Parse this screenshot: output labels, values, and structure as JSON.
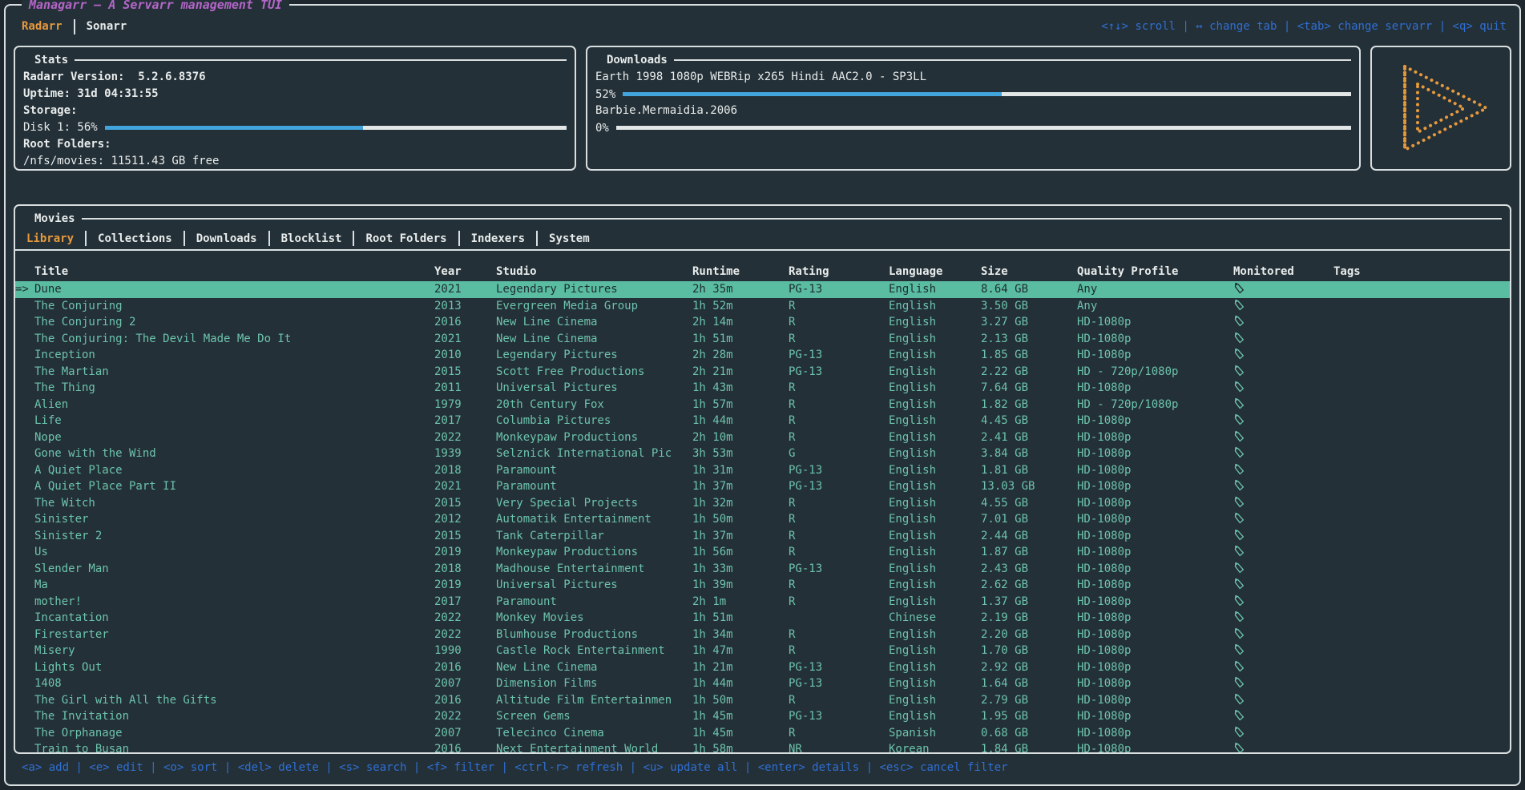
{
  "app": {
    "title": "Managarr — A Servarr management TUI"
  },
  "top_keybinds": "<↑↓> scroll | ↔ change tab | <tab> change servarr | <q> quit",
  "servarr_tabs": [
    {
      "label": "Radarr",
      "active": true
    },
    {
      "label": "Sonarr",
      "active": false
    }
  ],
  "stats": {
    "title": "Stats",
    "version_line": "Radarr Version:  5.2.6.8376",
    "uptime_line": "Uptime: 31d 04:31:55",
    "storage_label": "Storage:",
    "disk_label": "Disk 1: 56%",
    "disk_percent": 56,
    "root_folders_label": "Root Folders:",
    "root_folder_line": "/nfs/movies: 11511.43 GB free"
  },
  "downloads": {
    "title": "Downloads",
    "items": [
      {
        "name": "Earth 1998 1080p WEBRip x265 Hindi AAC2.0 - SP3LL",
        "percent_label": "52%",
        "percent": 52
      },
      {
        "name": "Barbie.Mermaidia.2006",
        "percent_label": "0%",
        "percent": 0
      }
    ]
  },
  "logo": {
    "name": "managarr-play-logo"
  },
  "movies": {
    "title": "Movies",
    "tabs": [
      {
        "label": "Library",
        "active": true
      },
      {
        "label": "Collections",
        "active": false
      },
      {
        "label": "Downloads",
        "active": false
      },
      {
        "label": "Blocklist",
        "active": false
      },
      {
        "label": "Root Folders",
        "active": false
      },
      {
        "label": "Indexers",
        "active": false
      },
      {
        "label": "System",
        "active": false
      }
    ],
    "columns": [
      "Title",
      "Year",
      "Studio",
      "Runtime",
      "Rating",
      "Language",
      "Size",
      "Quality Profile",
      "Monitored",
      "Tags"
    ],
    "selected_prefix": "=>",
    "rows": [
      {
        "selected": true,
        "title": "Dune",
        "year": "2021",
        "studio": "Legendary Pictures",
        "runtime": "2h 35m",
        "rating": "PG-13",
        "language": "English",
        "size": "8.64 GB",
        "quality": "Any",
        "monitored": true,
        "tags": ""
      },
      {
        "selected": false,
        "title": "The Conjuring",
        "year": "2013",
        "studio": "Evergreen Media Group",
        "runtime": "1h 52m",
        "rating": "R",
        "language": "English",
        "size": "3.50 GB",
        "quality": "Any",
        "monitored": true,
        "tags": ""
      },
      {
        "selected": false,
        "title": "The Conjuring 2",
        "year": "2016",
        "studio": "New Line Cinema",
        "runtime": "2h 14m",
        "rating": "R",
        "language": "English",
        "size": "3.27 GB",
        "quality": "HD-1080p",
        "monitored": true,
        "tags": ""
      },
      {
        "selected": false,
        "title": "The Conjuring: The Devil Made Me Do It",
        "year": "2021",
        "studio": "New Line Cinema",
        "runtime": "1h 51m",
        "rating": "R",
        "language": "English",
        "size": "2.13 GB",
        "quality": "HD-1080p",
        "monitored": true,
        "tags": ""
      },
      {
        "selected": false,
        "title": "Inception",
        "year": "2010",
        "studio": "Legendary Pictures",
        "runtime": "2h 28m",
        "rating": "PG-13",
        "language": "English",
        "size": "1.85 GB",
        "quality": "HD-1080p",
        "monitored": true,
        "tags": ""
      },
      {
        "selected": false,
        "title": "The Martian",
        "year": "2015",
        "studio": "Scott Free Productions",
        "runtime": "2h 21m",
        "rating": "PG-13",
        "language": "English",
        "size": "2.22 GB",
        "quality": "HD - 720p/1080p",
        "monitored": true,
        "tags": ""
      },
      {
        "selected": false,
        "title": "The Thing",
        "year": "2011",
        "studio": "Universal Pictures",
        "runtime": "1h 43m",
        "rating": "R",
        "language": "English",
        "size": "7.64 GB",
        "quality": "HD-1080p",
        "monitored": true,
        "tags": ""
      },
      {
        "selected": false,
        "title": "Alien",
        "year": "1979",
        "studio": "20th Century Fox",
        "runtime": "1h 57m",
        "rating": "R",
        "language": "English",
        "size": "1.82 GB",
        "quality": "HD - 720p/1080p",
        "monitored": true,
        "tags": ""
      },
      {
        "selected": false,
        "title": "Life",
        "year": "2017",
        "studio": "Columbia Pictures",
        "runtime": "1h 44m",
        "rating": "R",
        "language": "English",
        "size": "4.45 GB",
        "quality": "HD-1080p",
        "monitored": true,
        "tags": ""
      },
      {
        "selected": false,
        "title": "Nope",
        "year": "2022",
        "studio": "Monkeypaw Productions",
        "runtime": "2h 10m",
        "rating": "R",
        "language": "English",
        "size": "2.41 GB",
        "quality": "HD-1080p",
        "monitored": true,
        "tags": ""
      },
      {
        "selected": false,
        "title": "Gone with the Wind",
        "year": "1939",
        "studio": "Selznick International Pic",
        "runtime": "3h 53m",
        "rating": "G",
        "language": "English",
        "size": "3.84 GB",
        "quality": "HD-1080p",
        "monitored": true,
        "tags": ""
      },
      {
        "selected": false,
        "title": "A Quiet Place",
        "year": "2018",
        "studio": "Paramount",
        "runtime": "1h 31m",
        "rating": "PG-13",
        "language": "English",
        "size": "1.81 GB",
        "quality": "HD-1080p",
        "monitored": true,
        "tags": ""
      },
      {
        "selected": false,
        "title": "A Quiet Place Part II",
        "year": "2021",
        "studio": "Paramount",
        "runtime": "1h 37m",
        "rating": "PG-13",
        "language": "English",
        "size": "13.03 GB",
        "quality": "HD-1080p",
        "monitored": true,
        "tags": ""
      },
      {
        "selected": false,
        "title": "The Witch",
        "year": "2015",
        "studio": "Very Special Projects",
        "runtime": "1h 32m",
        "rating": "R",
        "language": "English",
        "size": "4.55 GB",
        "quality": "HD-1080p",
        "monitored": true,
        "tags": ""
      },
      {
        "selected": false,
        "title": "Sinister",
        "year": "2012",
        "studio": "Automatik Entertainment",
        "runtime": "1h 50m",
        "rating": "R",
        "language": "English",
        "size": "7.01 GB",
        "quality": "HD-1080p",
        "monitored": true,
        "tags": ""
      },
      {
        "selected": false,
        "title": "Sinister 2",
        "year": "2015",
        "studio": "Tank Caterpillar",
        "runtime": "1h 37m",
        "rating": "R",
        "language": "English",
        "size": "2.44 GB",
        "quality": "HD-1080p",
        "monitored": true,
        "tags": ""
      },
      {
        "selected": false,
        "title": "Us",
        "year": "2019",
        "studio": "Monkeypaw Productions",
        "runtime": "1h 56m",
        "rating": "R",
        "language": "English",
        "size": "1.87 GB",
        "quality": "HD-1080p",
        "monitored": true,
        "tags": ""
      },
      {
        "selected": false,
        "title": "Slender Man",
        "year": "2018",
        "studio": "Madhouse Entertainment",
        "runtime": "1h 33m",
        "rating": "PG-13",
        "language": "English",
        "size": "2.43 GB",
        "quality": "HD-1080p",
        "monitored": true,
        "tags": ""
      },
      {
        "selected": false,
        "title": "Ma",
        "year": "2019",
        "studio": "Universal Pictures",
        "runtime": "1h 39m",
        "rating": "R",
        "language": "English",
        "size": "2.62 GB",
        "quality": "HD-1080p",
        "monitored": true,
        "tags": ""
      },
      {
        "selected": false,
        "title": "mother!",
        "year": "2017",
        "studio": "Paramount",
        "runtime": "2h 1m",
        "rating": "R",
        "language": "English",
        "size": "1.37 GB",
        "quality": "HD-1080p",
        "monitored": true,
        "tags": ""
      },
      {
        "selected": false,
        "title": "Incantation",
        "year": "2022",
        "studio": "Monkey Movies",
        "runtime": "1h 51m",
        "rating": "",
        "language": "Chinese",
        "size": "2.19 GB",
        "quality": "HD-1080p",
        "monitored": true,
        "tags": ""
      },
      {
        "selected": false,
        "title": "Firestarter",
        "year": "2022",
        "studio": "Blumhouse Productions",
        "runtime": "1h 34m",
        "rating": "R",
        "language": "English",
        "size": "2.20 GB",
        "quality": "HD-1080p",
        "monitored": true,
        "tags": ""
      },
      {
        "selected": false,
        "title": "Misery",
        "year": "1990",
        "studio": "Castle Rock Entertainment",
        "runtime": "1h 47m",
        "rating": "R",
        "language": "English",
        "size": "1.70 GB",
        "quality": "HD-1080p",
        "monitored": true,
        "tags": ""
      },
      {
        "selected": false,
        "title": "Lights Out",
        "year": "2016",
        "studio": "New Line Cinema",
        "runtime": "1h 21m",
        "rating": "PG-13",
        "language": "English",
        "size": "2.92 GB",
        "quality": "HD-1080p",
        "monitored": true,
        "tags": ""
      },
      {
        "selected": false,
        "title": "1408",
        "year": "2007",
        "studio": "Dimension Films",
        "runtime": "1h 44m",
        "rating": "PG-13",
        "language": "English",
        "size": "1.64 GB",
        "quality": "HD-1080p",
        "monitored": true,
        "tags": ""
      },
      {
        "selected": false,
        "title": "The Girl with All the Gifts",
        "year": "2016",
        "studio": "Altitude Film Entertainmen",
        "runtime": "1h 50m",
        "rating": "R",
        "language": "English",
        "size": "2.79 GB",
        "quality": "HD-1080p",
        "monitored": true,
        "tags": ""
      },
      {
        "selected": false,
        "title": "The Invitation",
        "year": "2022",
        "studio": "Screen Gems",
        "runtime": "1h 45m",
        "rating": "PG-13",
        "language": "English",
        "size": "1.95 GB",
        "quality": "HD-1080p",
        "monitored": true,
        "tags": ""
      },
      {
        "selected": false,
        "title": "The Orphanage",
        "year": "2007",
        "studio": "Telecinco Cinema",
        "runtime": "1h 45m",
        "rating": "R",
        "language": "Spanish",
        "size": "0.68 GB",
        "quality": "HD-1080p",
        "monitored": true,
        "tags": ""
      },
      {
        "selected": false,
        "title": "Train to Busan",
        "year": "2016",
        "studio": "Next Entertainment World",
        "runtime": "1h 58m",
        "rating": "NR",
        "language": "Korean",
        "size": "1.84 GB",
        "quality": "HD-1080p",
        "monitored": true,
        "tags": ""
      }
    ]
  },
  "footer_keybinds": "<a> add | <e> edit | <o> sort | <del> delete | <s> search | <f> filter | <ctrl-r> refresh | <u> update all | <enter> details | <esc> cancel filter",
  "colors": {
    "bg": "#243037",
    "bg-page": "#1d272d",
    "border": "#d9dfe1",
    "text": "#e8ecec",
    "teal": "#6cc3ac",
    "orange": "#e6993d",
    "purple": "#b465c8",
    "blue": "#2f6fd3",
    "selected-bg": "#5abda1",
    "selected-text": "#1e2b31",
    "progress": "#41a4dc",
    "progress-track": "#e2e6e6"
  }
}
